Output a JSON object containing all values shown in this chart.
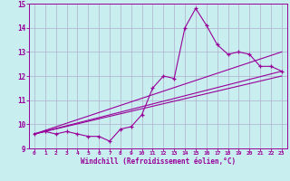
{
  "xlabel": "Windchill (Refroidissement éolien,°C)",
  "bg_color": "#c8eef0",
  "grid_color": "#b0b0cc",
  "line_color": "#990099",
  "xlim": [
    -0.5,
    23.5
  ],
  "ylim": [
    9,
    15
  ],
  "xticks": [
    0,
    1,
    2,
    3,
    4,
    5,
    6,
    7,
    8,
    9,
    10,
    11,
    12,
    13,
    14,
    15,
    16,
    17,
    18,
    19,
    20,
    21,
    22,
    23
  ],
  "yticks": [
    9,
    10,
    11,
    12,
    13,
    14,
    15
  ],
  "main_x": [
    0,
    1,
    2,
    3,
    4,
    5,
    6,
    7,
    8,
    9,
    10,
    11,
    12,
    13,
    14,
    15,
    16,
    17,
    18,
    19,
    20,
    21,
    22,
    23
  ],
  "main_y": [
    9.6,
    9.7,
    9.6,
    9.7,
    9.6,
    9.5,
    9.5,
    9.3,
    9.8,
    9.9,
    10.4,
    11.5,
    12.0,
    11.9,
    14.0,
    14.8,
    14.1,
    13.3,
    12.9,
    13.0,
    12.9,
    12.4,
    12.4,
    12.2
  ],
  "trend1_x": [
    0,
    23
  ],
  "trend1_y": [
    9.6,
    13.0
  ],
  "trend2_x": [
    0,
    23
  ],
  "trend2_y": [
    9.6,
    12.2
  ],
  "trend3_x": [
    0,
    23
  ],
  "trend3_y": [
    9.6,
    12.0
  ]
}
